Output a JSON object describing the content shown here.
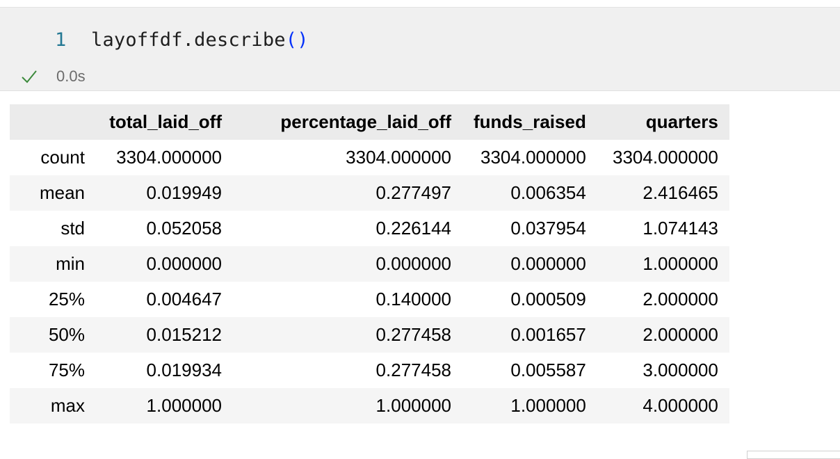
{
  "cell": {
    "line_number": "1",
    "code_prefix": "layoffdf.describe",
    "code_parens": "()",
    "exec_time": "0.0s"
  },
  "table": {
    "columns": [
      "total_laid_off",
      "percentage_laid_off",
      "funds_raised",
      "quarters"
    ],
    "rows": [
      {
        "label": "count",
        "values": [
          "3304.000000",
          "3304.000000",
          "3304.000000",
          "3304.000000"
        ]
      },
      {
        "label": "mean",
        "values": [
          "0.019949",
          "0.277497",
          "0.006354",
          "2.416465"
        ]
      },
      {
        "label": "std",
        "values": [
          "0.052058",
          "0.226144",
          "0.037954",
          "1.074143"
        ]
      },
      {
        "label": "min",
        "values": [
          "0.000000",
          "0.000000",
          "0.000000",
          "1.000000"
        ]
      },
      {
        "label": "25%",
        "values": [
          "0.004647",
          "0.140000",
          "0.000509",
          "2.000000"
        ]
      },
      {
        "label": "50%",
        "values": [
          "0.015212",
          "0.277458",
          "0.001657",
          "2.000000"
        ]
      },
      {
        "label": "75%",
        "values": [
          "0.019934",
          "0.277458",
          "0.005587",
          "3.000000"
        ]
      },
      {
        "label": "max",
        "values": [
          "1.000000",
          "1.000000",
          "1.000000",
          "4.000000"
        ]
      }
    ]
  },
  "colors": {
    "success_check": "#3c8a3c",
    "line_number": "#237893",
    "paren": "#0431fa"
  }
}
